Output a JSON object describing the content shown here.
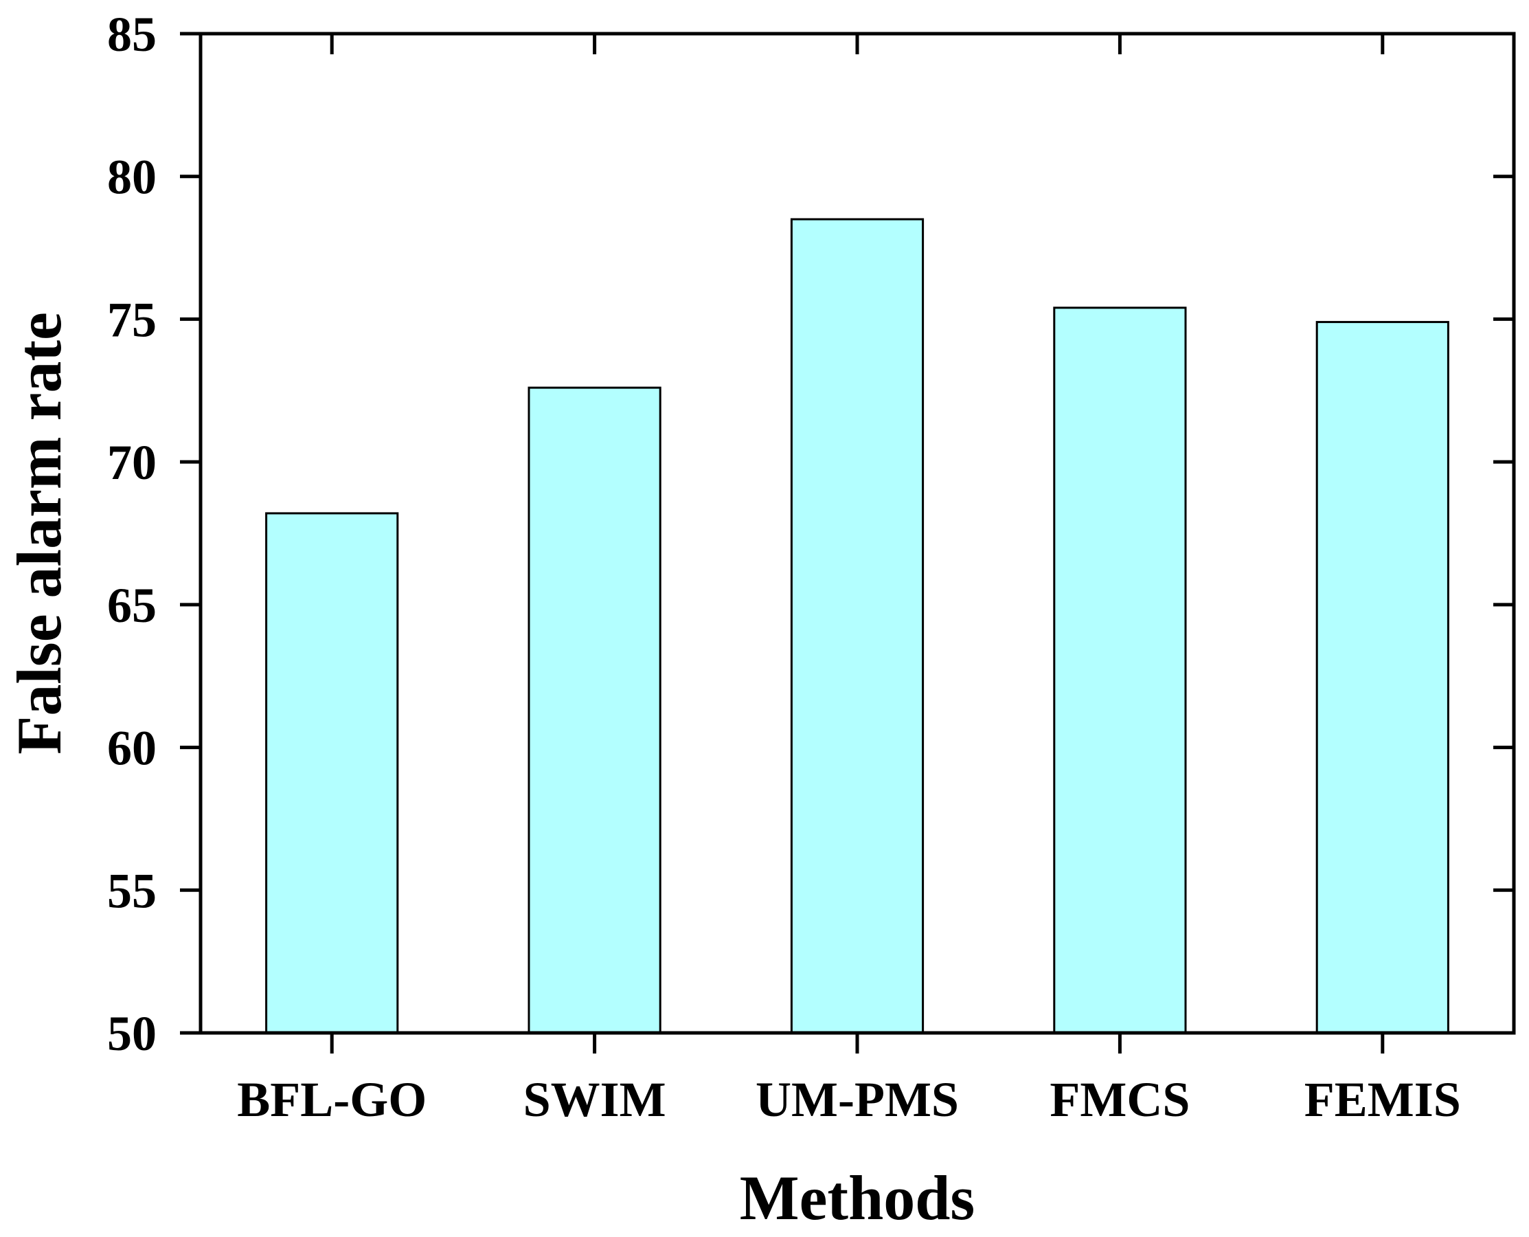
{
  "chart_data": {
    "type": "bar",
    "categories": [
      "BFL-GO",
      "SWIM",
      "UM-PMS",
      "FMCS",
      "FEMIS"
    ],
    "values": [
      68.2,
      72.6,
      78.5,
      75.4,
      74.9
    ],
    "xlabel": "Methods",
    "ylabel": "False alarm rate",
    "ylim": [
      50,
      85
    ],
    "yticks": [
      50,
      55,
      60,
      65,
      70,
      75,
      80,
      85
    ],
    "grid": false,
    "bar_color": "#b3ffff",
    "bar_edge_color": "#000000"
  }
}
